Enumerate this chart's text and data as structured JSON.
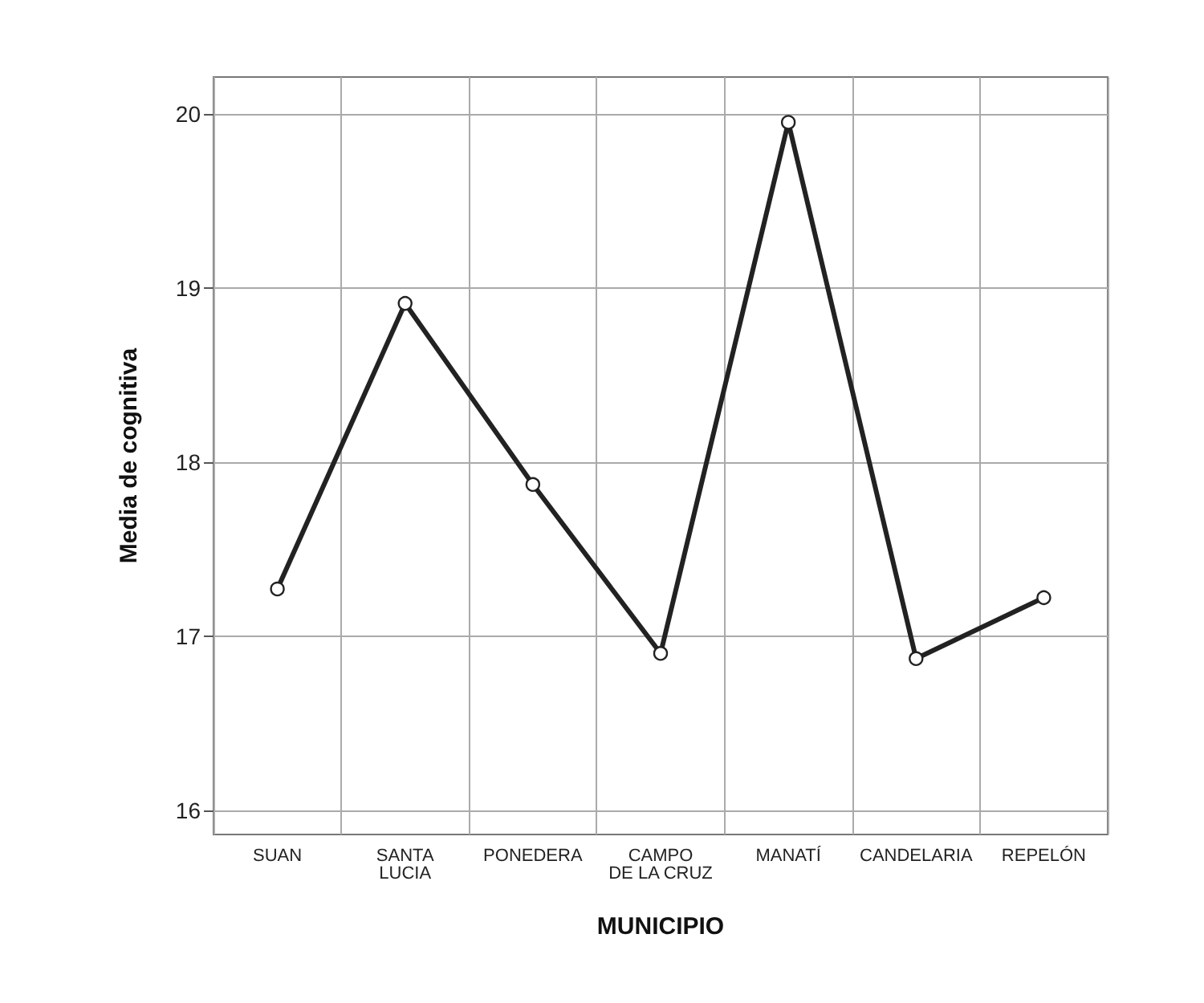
{
  "chart_data": {
    "type": "line",
    "xlabel": "MUNICIPIO",
    "ylabel": "Media de cognitiva",
    "categories": [
      "SUAN",
      "SANTA\nLUCIA",
      "PONEDERA",
      "CAMPO\nDE LA CRUZ",
      "MANATÍ",
      "CANDELARIA",
      "REPELÓN"
    ],
    "series": [
      {
        "color": "#222222",
        "values": [
          17.27,
          18.91,
          17.87,
          16.9,
          19.95,
          16.87,
          17.22
        ]
      }
    ],
    "ylim": [
      15.86,
      20.21
    ],
    "yticks": [
      16,
      17,
      18,
      19,
      20
    ],
    "grid": true,
    "marker": "circle",
    "line_style": "solid"
  }
}
